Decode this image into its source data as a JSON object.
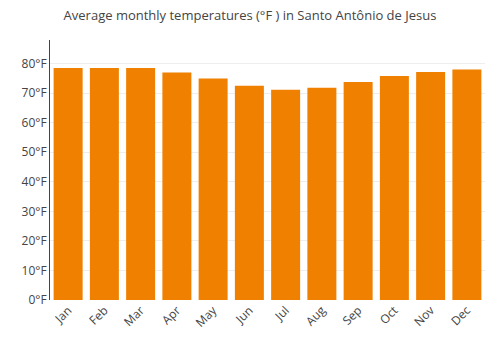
{
  "chart_data": {
    "type": "bar",
    "title": "Average monthly temperatures (°F ) in Santo Antônio de Jesus",
    "categories": [
      "Jan",
      "Feb",
      "Mar",
      "Apr",
      "May",
      "Jun",
      "Jul",
      "Aug",
      "Sep",
      "Oct",
      "Nov",
      "Dec"
    ],
    "values": [
      78.5,
      78.5,
      78.5,
      77.0,
      75.0,
      72.5,
      71.2,
      71.8,
      73.8,
      75.8,
      77.2,
      78.0
    ],
    "color": "#F08000",
    "ylim": [
      0,
      88
    ],
    "yticks": [
      {
        "value": 0,
        "label": "0°F"
      },
      {
        "value": 10,
        "label": "10°F"
      },
      {
        "value": 20,
        "label": "20°F"
      },
      {
        "value": 30,
        "label": "30°F"
      },
      {
        "value": 40,
        "label": "40°F"
      },
      {
        "value": 50,
        "label": "50°F"
      },
      {
        "value": 60,
        "label": "60°F"
      },
      {
        "value": 70,
        "label": "70°F"
      },
      {
        "value": 80,
        "label": "80°F"
      }
    ],
    "grid": true
  }
}
